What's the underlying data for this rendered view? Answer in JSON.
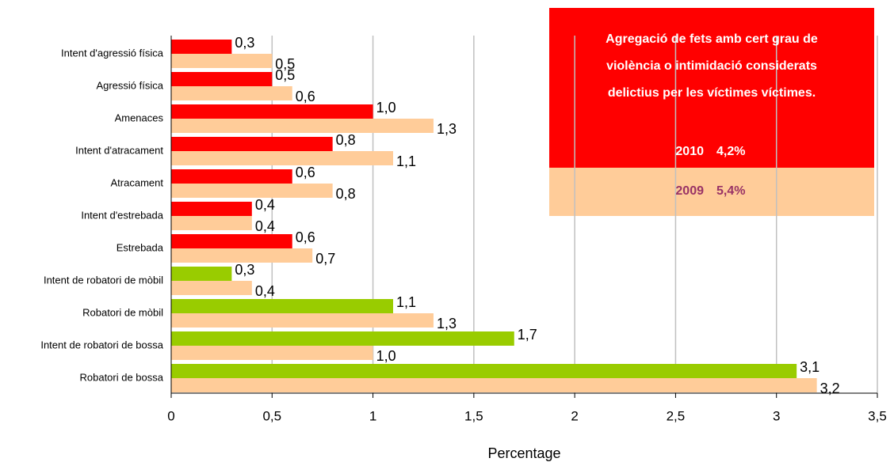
{
  "chart_data": {
    "type": "bar",
    "orientation": "horizontal",
    "x_label": "Percentage",
    "categories": [
      "Intent d'agressió física",
      "Agressió física",
      "Amenaces",
      "Intent d'atracament",
      "Atracament",
      "Intent d'estrebada",
      "Estrebada",
      "Intent de robatori de mòbil",
      "Robatori de mòbil",
      "Intent de robatori de bossa",
      "Robatori de bossa"
    ],
    "series": [
      {
        "name": "2010",
        "total_label": "4,2%",
        "colors": [
          "#ff0000",
          "#ff0000",
          "#ff0000",
          "#ff0000",
          "#ff0000",
          "#ff0000",
          "#ff0000",
          "#99cc00",
          "#99cc00",
          "#99cc00",
          "#99cc00"
        ],
        "values": [
          0.3,
          0.5,
          1.0,
          0.8,
          0.6,
          0.4,
          0.6,
          0.3,
          1.1,
          1.7,
          3.1
        ],
        "value_labels": [
          "0,3",
          "0,5",
          "1,0",
          "0,8",
          "0,6",
          "0,4",
          "0,6",
          "0,3",
          "1,1",
          "1,7",
          "3,1"
        ]
      },
      {
        "name": "2009",
        "total_label": "5,4%",
        "color": "#ffcc99",
        "values": [
          0.5,
          0.6,
          1.3,
          1.1,
          0.8,
          0.4,
          0.7,
          0.4,
          1.3,
          1.0,
          3.2
        ],
        "value_labels": [
          "0,5",
          "0,6",
          "1,3",
          "1,1",
          "0,8",
          "0,4",
          "0,7",
          "0,4",
          "1,3",
          "1,0",
          "3,2"
        ]
      }
    ],
    "xlim": [
      0,
      3.5
    ],
    "xticks": [
      0,
      {
        "value": 0.5,
        "label": "0,5"
      },
      1,
      {
        "value": 1.5,
        "label": "1,5"
      },
      2,
      {
        "value": 2.5,
        "label": "2,5"
      },
      3,
      {
        "value": 3.5,
        "label": "3,5"
      }
    ],
    "grid": true,
    "legend_box": {
      "text": [
        "Agregació de fets amb cert grau de",
        "violència o intimidació considerats",
        "delictius per les víctimes víctimes."
      ]
    }
  }
}
